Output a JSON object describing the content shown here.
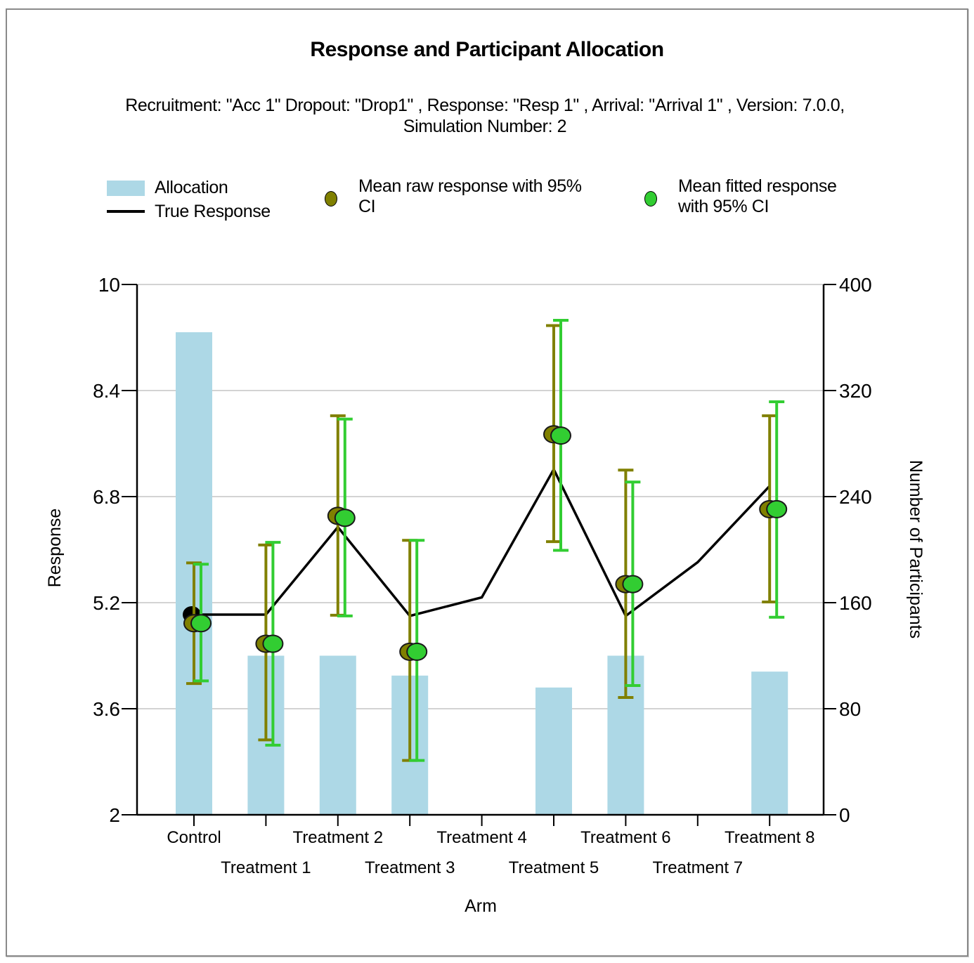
{
  "chart_data": {
    "type": "bar",
    "title": "Response and Participant Allocation",
    "subtitle_lines": [
      "Recruitment: \"Acc 1\" Dropout: \"Drop1\" , Response: \"Resp 1\" , Arrival: \"Arrival 1\" , Version: 7.0.0,",
      "Simulation Number: 2"
    ],
    "xlabel": "Arm",
    "ylabel": "Response",
    "y2label": "Number of Participants",
    "ylim": [
      2,
      10
    ],
    "y2lim": [
      0,
      400
    ],
    "yticks": [
      "10",
      "8.4",
      "6.8",
      "5.2",
      "3.6",
      "2"
    ],
    "ytick_values": [
      10,
      8.4,
      6.8,
      5.2,
      3.6,
      2
    ],
    "y2ticks": [
      "400",
      "320",
      "240",
      "160",
      "80",
      "0"
    ],
    "y2tick_values": [
      400,
      320,
      240,
      160,
      80,
      0
    ],
    "grid": true,
    "legend_position": "top",
    "categories": [
      "Control",
      "Treatment 1",
      "Treatment 2",
      "Treatment 3",
      "Treatment 4",
      "Treatment 5",
      "Treatment 6",
      "Treatment 7",
      "Treatment 8"
    ],
    "legend": [
      {
        "name": "Allocation",
        "kind": "bar",
        "color": "#add8e6"
      },
      {
        "name": "True Response",
        "kind": "line",
        "color": "#000000"
      },
      {
        "name": "Mean raw response with 95% CI",
        "kind": "marker",
        "color": "#808000",
        "lines": [
          "Mean raw response with 95%",
          "CI"
        ]
      },
      {
        "name": "Mean fitted response with 95% CI",
        "kind": "marker",
        "color": "#32cd32",
        "lines": [
          "Mean fitted response",
          "with 95% CI"
        ]
      }
    ],
    "series": [
      {
        "name": "Allocation",
        "type": "bar",
        "axis": "right",
        "color": "#add8e6",
        "values": [
          364,
          120,
          120,
          105,
          0,
          96,
          120,
          0,
          108
        ]
      },
      {
        "name": "True Response",
        "type": "line",
        "axis": "left",
        "color": "#000000",
        "values": [
          5.02,
          5.02,
          6.34,
          5.0,
          5.28,
          7.21,
          5.0,
          5.81,
          6.96
        ]
      },
      {
        "name": "Mean raw response with 95% CI",
        "type": "errorbar",
        "axis": "left",
        "color": "#808000",
        "values": [
          4.89,
          4.58,
          6.51,
          4.46,
          null,
          7.74,
          5.48,
          null,
          6.61
        ],
        "lower": [
          3.98,
          3.13,
          5.01,
          2.82,
          null,
          6.12,
          3.77,
          null,
          5.21
        ],
        "upper": [
          5.8,
          6.07,
          8.02,
          6.14,
          null,
          9.38,
          7.2,
          null,
          8.02
        ]
      },
      {
        "name": "Mean fitted response with 95% CI",
        "type": "errorbar",
        "axis": "left",
        "color": "#32cd32",
        "values": [
          4.89,
          4.58,
          6.48,
          4.46,
          null,
          7.72,
          5.48,
          null,
          6.61
        ],
        "lower": [
          4.02,
          3.05,
          5.0,
          2.82,
          null,
          5.99,
          3.95,
          null,
          4.98
        ],
        "upper": [
          5.78,
          6.11,
          7.97,
          6.14,
          null,
          9.46,
          7.02,
          null,
          8.23
        ]
      }
    ]
  }
}
